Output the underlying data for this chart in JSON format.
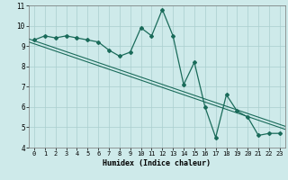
{
  "xlabel": "Humidex (Indice chaleur)",
  "x_values": [
    0,
    1,
    2,
    3,
    4,
    5,
    6,
    7,
    8,
    9,
    10,
    11,
    12,
    13,
    14,
    15,
    16,
    17,
    18,
    19,
    20,
    21,
    22,
    23
  ],
  "y_values": [
    9.3,
    9.5,
    9.4,
    9.5,
    9.4,
    9.3,
    9.2,
    8.8,
    8.5,
    8.7,
    9.9,
    9.5,
    10.8,
    9.5,
    7.1,
    8.2,
    6.0,
    4.5,
    6.6,
    5.8,
    5.5,
    4.6,
    4.7,
    4.7
  ],
  "trend_y_start": 9.35,
  "trend_y_end": 5.05,
  "trend_y2_start": 9.2,
  "trend_y2_end": 4.9,
  "line_color": "#1a6b5a",
  "bg_color": "#ceeaea",
  "grid_color": "#aacece",
  "ylim": [
    4,
    11
  ],
  "xlim": [
    -0.5,
    23.5
  ],
  "yticks": [
    4,
    5,
    6,
    7,
    8,
    9,
    10,
    11
  ],
  "xticks": [
    0,
    1,
    2,
    3,
    4,
    5,
    6,
    7,
    8,
    9,
    10,
    11,
    12,
    13,
    14,
    15,
    16,
    17,
    18,
    19,
    20,
    21,
    22,
    23
  ],
  "tick_fontsize": 5,
  "xlabel_fontsize": 6,
  "marker_size": 2.0
}
